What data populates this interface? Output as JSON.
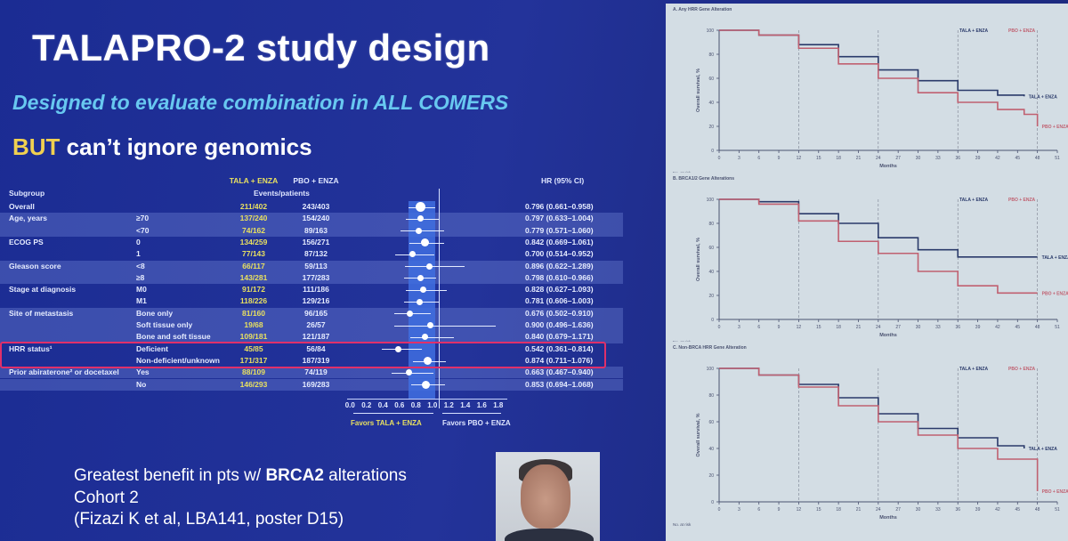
{
  "slide": {
    "title": "TALAPRO-2 study design",
    "subtitle_line1": "Designed to evaluate combination in ALL COMERS",
    "subtitle_line2_highlight": "BUT",
    "subtitle_line2_rest": " can’t ignore genomics",
    "footer_line1_pre": "Greatest benefit in pts w/ ",
    "footer_line1_bold": "BRCA2",
    "footer_line1_post": " alterations",
    "footer_line2": "Cohort 2",
    "footer_line3": "(Fizazi K et al, LBA141, poster D15)",
    "photo_alt": "presenter-photo"
  },
  "forest": {
    "arm_tala": "TALA + ENZA",
    "arm_pbo": "PBO + ENZA",
    "col_subgroup": "Subgroup",
    "col_events": "Events/patients",
    "col_hr": "HR (95% CI)",
    "axis_ticks": [
      "0.0",
      "0.2",
      "0.4",
      "0.6",
      "0.8",
      "1.0",
      "1.2",
      "1.4",
      "1.6",
      "1.8"
    ],
    "favors_left": "Favors TALA + ENZA",
    "favors_right": "Favors PBO + ENZA",
    "highlight_color": "#e0306a"
  },
  "chart_data": [
    {
      "type": "forest",
      "title": "TALAPRO-2 overall survival subgroup analysis",
      "xlabel": "HR (95% CI)",
      "xlim": [
        0.0,
        1.8
      ],
      "reference_line": 1.0,
      "legend": [
        "Favors TALA + ENZA",
        "Favors PBO + ENZA"
      ],
      "rows": [
        {
          "subgroup": "Overall",
          "category": "",
          "tala": "211/402",
          "pbo": "243/403",
          "hr": 0.796,
          "lo": 0.661,
          "hi": 0.958,
          "hr_text": "0.796 (0.661–0.958)"
        },
        {
          "subgroup": "Age, years",
          "category": "≥70",
          "tala": "137/240",
          "pbo": "154/240",
          "hr": 0.797,
          "lo": 0.633,
          "hi": 1.004,
          "hr_text": "0.797 (0.633–1.004)"
        },
        {
          "subgroup": "",
          "category": "<70",
          "tala": "74/162",
          "pbo": "89/163",
          "hr": 0.779,
          "lo": 0.571,
          "hi": 1.06,
          "hr_text": "0.779 (0.571–1.060)"
        },
        {
          "subgroup": "ECOG PS",
          "category": "0",
          "tala": "134/259",
          "pbo": "156/271",
          "hr": 0.842,
          "lo": 0.669,
          "hi": 1.061,
          "hr_text": "0.842 (0.669–1.061)"
        },
        {
          "subgroup": "",
          "category": "1",
          "tala": "77/143",
          "pbo": "87/132",
          "hr": 0.7,
          "lo": 0.514,
          "hi": 0.952,
          "hr_text": "0.700 (0.514–0.952)"
        },
        {
          "subgroup": "Gleason score",
          "category": "<8",
          "tala": "66/117",
          "pbo": "59/113",
          "hr": 0.896,
          "lo": 0.622,
          "hi": 1.289,
          "hr_text": "0.896 (0.622–1.289)"
        },
        {
          "subgroup": "",
          "category": "≥8",
          "tala": "143/281",
          "pbo": "177/283",
          "hr": 0.798,
          "lo": 0.61,
          "hi": 0.966,
          "hr_text": "0.798 (0.610–0.966)"
        },
        {
          "subgroup": "Stage at diagnosis",
          "category": "M0",
          "tala": "91/172",
          "pbo": "111/186",
          "hr": 0.828,
          "lo": 0.627,
          "hi": 1.093,
          "hr_text": "0.828 (0.627–1.093)"
        },
        {
          "subgroup": "",
          "category": "M1",
          "tala": "118/226",
          "pbo": "129/216",
          "hr": 0.781,
          "lo": 0.606,
          "hi": 1.003,
          "hr_text": "0.781 (0.606–1.003)"
        },
        {
          "subgroup": "Site of metastasis",
          "category": "Bone only",
          "tala": "81/160",
          "pbo": "96/165",
          "hr": 0.676,
          "lo": 0.502,
          "hi": 0.91,
          "hr_text": "0.676 (0.502–0.910)"
        },
        {
          "subgroup": "",
          "category": "Soft tissue only",
          "tala": "19/68",
          "pbo": "26/57",
          "hr": 0.9,
          "lo": 0.496,
          "hi": 1.636,
          "hr_text": "0.900 (0.496–1.636)"
        },
        {
          "subgroup": "",
          "category": "Bone and soft tissue",
          "tala": "109/181",
          "pbo": "121/187",
          "hr": 0.84,
          "lo": 0.679,
          "hi": 1.171,
          "hr_text": "0.840 (0.679–1.171)"
        },
        {
          "subgroup": "HRR status¹",
          "category": "Deficient",
          "tala": "45/85",
          "pbo": "56/84",
          "hr": 0.542,
          "lo": 0.361,
          "hi": 0.814,
          "hr_text": "0.542 (0.361–0.814)",
          "highlighted": true
        },
        {
          "subgroup": "",
          "category": "Non-deficient/unknown",
          "tala": "171/317",
          "pbo": "187/319",
          "hr": 0.874,
          "lo": 0.711,
          "hi": 1.076,
          "hr_text": "0.874 (0.711–1.076)",
          "highlighted": true
        },
        {
          "subgroup": "Prior abiraterone² or docetaxel",
          "category": "Yes",
          "tala": "88/109",
          "pbo": "74/119",
          "hr": 0.663,
          "lo": 0.467,
          "hi": 0.94,
          "hr_text": "0.663 (0.467–0.940)"
        },
        {
          "subgroup": "",
          "category": "No",
          "tala": "146/293",
          "pbo": "169/283",
          "hr": 0.853,
          "lo": 0.694,
          "hi": 1.068,
          "hr_text": "0.853 (0.694–1.068)"
        }
      ]
    },
    {
      "type": "line",
      "title": "A. Any HRR gene alteration (Kaplan-Meier overall survival)",
      "xlabel": "Months",
      "ylabel": "Overall survival, %",
      "xlim": [
        0,
        51
      ],
      "ylim": [
        0,
        100
      ],
      "series": [
        {
          "name": "TALA + ENZA",
          "color": "#2a3a6a",
          "x": [
            0,
            6,
            12,
            18,
            24,
            30,
            36,
            42,
            46
          ],
          "y": [
            100,
            96,
            88,
            78,
            67,
            58,
            50,
            46,
            45
          ]
        },
        {
          "name": "PBO + ENZA",
          "color": "#c06070",
          "x": [
            0,
            6,
            12,
            18,
            24,
            30,
            36,
            42,
            46,
            48
          ],
          "y": [
            100,
            96,
            85,
            72,
            60,
            48,
            40,
            34,
            30,
            20
          ]
        }
      ]
    },
    {
      "type": "line",
      "title": "B. BRCA-1/2 gene alterations (Kaplan-Meier overall survival)",
      "xlabel": "Months",
      "ylabel": "Overall survival, %",
      "xlim": [
        0,
        51
      ],
      "ylim": [
        0,
        100
      ],
      "series": [
        {
          "name": "TALA + ENZA",
          "color": "#2a3a6a",
          "x": [
            0,
            6,
            12,
            18,
            24,
            30,
            36,
            42,
            48
          ],
          "y": [
            100,
            98,
            88,
            80,
            68,
            58,
            52,
            52,
            52
          ]
        },
        {
          "name": "PBO + ENZA",
          "color": "#c06070",
          "x": [
            0,
            6,
            12,
            18,
            24,
            30,
            36,
            42,
            48
          ],
          "y": [
            100,
            96,
            82,
            65,
            55,
            40,
            28,
            22,
            22
          ]
        }
      ]
    },
    {
      "type": "line",
      "title": "C. Non-BRCA HRR gene alterations (Kaplan-Meier overall survival)",
      "xlabel": "Months",
      "ylabel": "Overall survival, %",
      "xlim": [
        0,
        51
      ],
      "ylim": [
        0,
        100
      ],
      "series": [
        {
          "name": "TALA + ENZA",
          "color": "#2a3a6a",
          "x": [
            0,
            6,
            12,
            18,
            24,
            30,
            36,
            42,
            46
          ],
          "y": [
            100,
            95,
            88,
            78,
            66,
            55,
            48,
            42,
            40
          ]
        },
        {
          "name": "PBO + ENZA",
          "color": "#c06070",
          "x": [
            0,
            6,
            12,
            18,
            24,
            30,
            36,
            42,
            48
          ],
          "y": [
            100,
            95,
            86,
            72,
            60,
            50,
            40,
            32,
            8
          ]
        }
      ]
    }
  ],
  "km": {
    "panel_a_label": "A. Any HRR Gene Alteration",
    "panel_b_label": "B. BRCA1/2 Gene Alterations",
    "panel_c_label": "C. Non-BRCA HRR Gene Alteration",
    "x_label": "Months",
    "y_label": "Overall survival, %",
    "risk_label": "No. at risk"
  }
}
